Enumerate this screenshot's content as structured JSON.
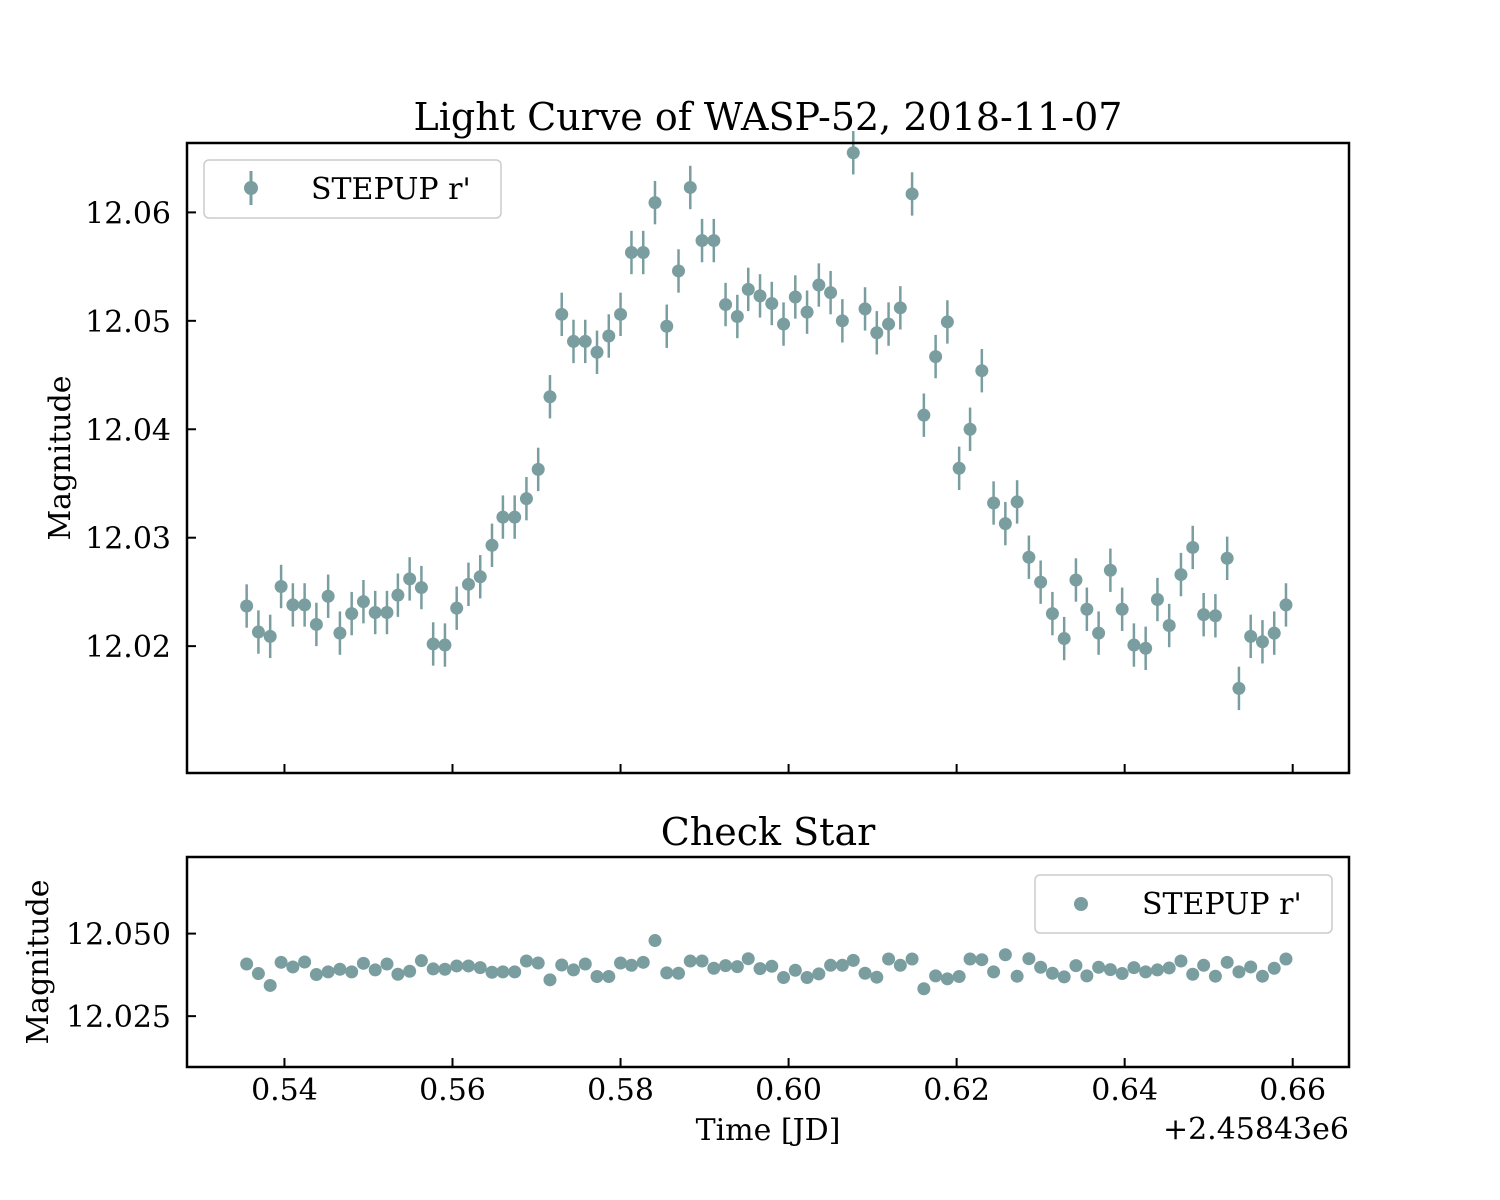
{
  "marker_color": "#7a9e9f",
  "x_offset_label": "+2.45843e6",
  "chart_data": [
    {
      "type": "scatter",
      "title": "Light Curve of WASP-52, 2018-11-07",
      "ylabel": "Magnitude",
      "xlim": [
        0.5284,
        0.6667
      ],
      "ylim": [
        12.0664,
        12.0083
      ],
      "y_inverted": true,
      "x_ticks": [
        "0.54",
        "0.56",
        "0.58",
        "0.60",
        "0.62",
        "0.64",
        "0.66"
      ],
      "y_ticks": [
        "12.02",
        "12.03",
        "12.04",
        "12.05",
        "12.06"
      ],
      "legend": {
        "label": "STEPUP r'",
        "position": "upper-left"
      },
      "error_bar": 0.002,
      "series": [
        {
          "name": "STEPUP r'",
          "x": [
            0.5355,
            0.5369,
            0.5383,
            0.5396,
            0.541,
            0.5424,
            0.5438,
            0.5452,
            0.5466,
            0.548,
            0.5494,
            0.5508,
            0.5522,
            0.5535,
            0.5549,
            0.5563,
            0.5577,
            0.5591,
            0.5605,
            0.5619,
            0.5633,
            0.5647,
            0.566,
            0.5674,
            0.5688,
            0.5702,
            0.5716,
            0.573,
            0.5744,
            0.5758,
            0.5772,
            0.5786,
            0.58,
            0.5813,
            0.5827,
            0.5841,
            0.5855,
            0.5869,
            0.5883,
            0.5897,
            0.5911,
            0.5925,
            0.5939,
            0.5952,
            0.5966,
            0.598,
            0.5994,
            0.6008,
            0.6022,
            0.6036,
            0.605,
            0.6064,
            0.6077,
            0.6091,
            0.6105,
            0.6119,
            0.6133,
            0.6147,
            0.6161,
            0.6175,
            0.6189,
            0.6203,
            0.6216,
            0.623,
            0.6244,
            0.6258,
            0.6272,
            0.6286,
            0.63,
            0.6314,
            0.6328,
            0.6342,
            0.6355,
            0.6369,
            0.6383,
            0.6397,
            0.6411,
            0.6425,
            0.6439,
            0.6453,
            0.6467,
            0.6481,
            0.6494,
            0.6508,
            0.6522,
            0.6536,
            0.655,
            0.6564,
            0.6578,
            0.6592
          ],
          "y": [
            12.0237,
            12.0213,
            12.0209,
            12.0255,
            12.0238,
            12.0238,
            12.022,
            12.0246,
            12.0212,
            12.023,
            12.0241,
            12.0231,
            12.0231,
            12.0247,
            12.0262,
            12.0254,
            12.0202,
            12.0201,
            12.0235,
            12.0257,
            12.0264,
            12.0293,
            12.0319,
            12.0319,
            12.0336,
            12.0363,
            12.043,
            12.0506,
            12.0481,
            12.0481,
            12.0471,
            12.0486,
            12.0506,
            12.0563,
            12.0563,
            12.0609,
            12.0495,
            12.0546,
            12.0623,
            12.0574,
            12.0574,
            12.0515,
            12.0504,
            12.0529,
            12.0523,
            12.0516,
            12.0497,
            12.0522,
            12.0508,
            12.0533,
            12.0526,
            12.05,
            12.0655,
            12.0511,
            12.0489,
            12.0497,
            12.0512,
            12.0617,
            12.0413,
            12.0467,
            12.0499,
            12.0364,
            12.04,
            12.0454,
            12.0332,
            12.0313,
            12.0333,
            12.0282,
            12.0259,
            12.023,
            12.0207,
            12.0261,
            12.0234,
            12.0212,
            12.027,
            12.0234,
            12.0201,
            12.0198,
            12.0243,
            12.0219,
            12.0266,
            12.0291,
            12.0229,
            12.0228,
            12.0281,
            12.0161,
            12.0209,
            12.0204,
            12.0212,
            12.0238
          ]
        }
      ]
    },
    {
      "type": "scatter",
      "title": "Check Star",
      "ylabel": "Magnitude",
      "xlabel": "Time [JD]",
      "xlim": [
        0.5284,
        0.6667
      ],
      "ylim": [
        12.0732,
        12.0096
      ],
      "y_inverted": true,
      "x_ticks": [
        "0.54",
        "0.56",
        "0.58",
        "0.60",
        "0.62",
        "0.64",
        "0.66"
      ],
      "y_ticks": [
        "12.025",
        "12.050"
      ],
      "legend": {
        "label": "STEPUP r'",
        "position": "upper-right"
      },
      "series": [
        {
          "name": "STEPUP r'",
          "x": [
            0.5355,
            0.5369,
            0.5383,
            0.5396,
            0.541,
            0.5424,
            0.5438,
            0.5452,
            0.5466,
            0.548,
            0.5494,
            0.5508,
            0.5522,
            0.5535,
            0.5549,
            0.5563,
            0.5577,
            0.5591,
            0.5605,
            0.5619,
            0.5633,
            0.5647,
            0.566,
            0.5674,
            0.5688,
            0.5702,
            0.5716,
            0.573,
            0.5744,
            0.5758,
            0.5772,
            0.5786,
            0.58,
            0.5813,
            0.5827,
            0.5841,
            0.5855,
            0.5869,
            0.5883,
            0.5897,
            0.5911,
            0.5925,
            0.5939,
            0.5952,
            0.5966,
            0.598,
            0.5994,
            0.6008,
            0.6022,
            0.6036,
            0.605,
            0.6064,
            0.6077,
            0.6091,
            0.6105,
            0.6119,
            0.6133,
            0.6147,
            0.6161,
            0.6175,
            0.6189,
            0.6203,
            0.6216,
            0.623,
            0.6244,
            0.6258,
            0.6272,
            0.6286,
            0.63,
            0.6314,
            0.6328,
            0.6342,
            0.6355,
            0.6369,
            0.6383,
            0.6397,
            0.6411,
            0.6425,
            0.6439,
            0.6453,
            0.6467,
            0.6481,
            0.6494,
            0.6508,
            0.6522,
            0.6536,
            0.655,
            0.6564,
            0.6578,
            0.6592
          ],
          "y": [
            12.0408,
            12.0379,
            12.0343,
            12.0413,
            12.0399,
            12.0414,
            12.0376,
            12.0384,
            12.0392,
            12.0384,
            12.041,
            12.039,
            12.0408,
            12.0377,
            12.0386,
            12.0418,
            12.0393,
            12.0392,
            12.0402,
            12.0402,
            12.0397,
            12.0383,
            12.0384,
            12.0384,
            12.0417,
            12.0411,
            12.036,
            12.0405,
            12.039,
            12.0408,
            12.037,
            12.037,
            12.0411,
            12.0404,
            12.0413,
            12.0479,
            12.0381,
            12.038,
            12.0417,
            12.0417,
            12.0395,
            12.0403,
            12.04,
            12.0424,
            12.0394,
            12.0401,
            12.0367,
            12.0389,
            12.0367,
            12.0378,
            12.0404,
            12.0404,
            12.0419,
            12.038,
            12.0368,
            12.0423,
            12.0404,
            12.0423,
            12.0333,
            12.0372,
            12.0363,
            12.037,
            12.0423,
            12.0421,
            12.0384,
            12.0436,
            12.0371,
            12.0424,
            12.0398,
            12.038,
            12.0369,
            12.0403,
            12.0372,
            12.0398,
            12.0391,
            12.0379,
            12.0397,
            12.0384,
            12.039,
            12.0396,
            12.0417,
            12.0377,
            12.0404,
            12.0371,
            12.0413,
            12.0384,
            12.0399,
            12.0371,
            12.0395,
            12.0423
          ]
        }
      ]
    }
  ]
}
